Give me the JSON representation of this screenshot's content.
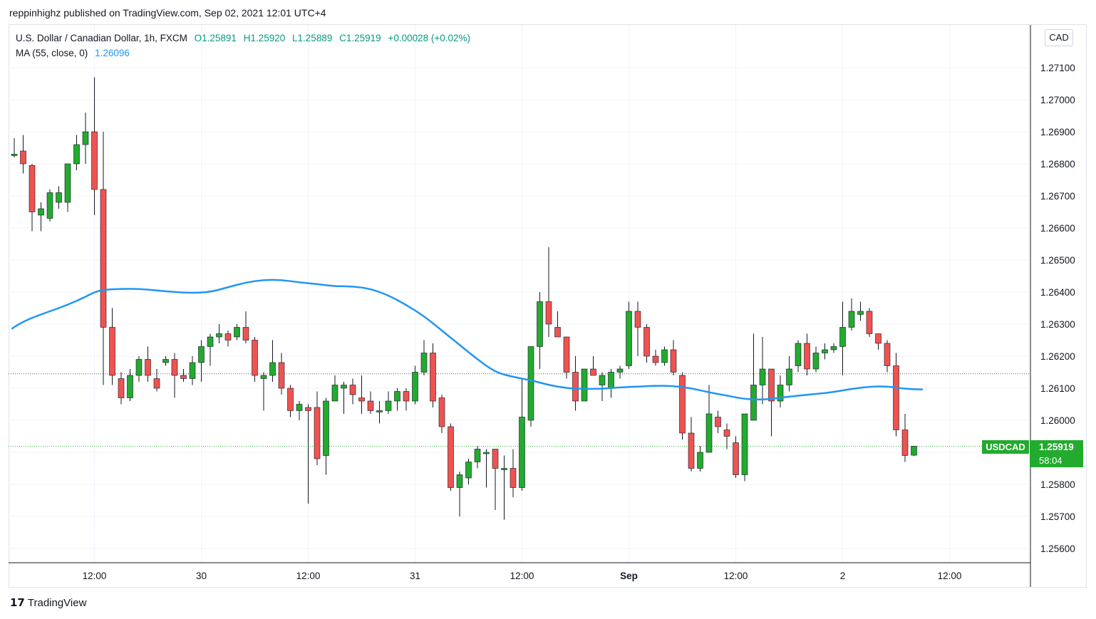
{
  "header": {
    "published": "reppinhighz published on TradingView.com, Sep 02, 2021 12:01 UTC+4"
  },
  "legend": {
    "title": "U.S. Dollar / Canadian Dollar, 1h, FXCM",
    "open": "O1.25891",
    "high": "H1.25920",
    "low": "L1.25889",
    "close": "C1.25919",
    "change": "+0.00028 (+0.02%)",
    "ma_label": "MA (55, close, 0)",
    "ma_value": "1.26096"
  },
  "currency_badge": "CAD",
  "price_tag": {
    "symbol": "USDCAD",
    "price": "1.25919",
    "countdown": "58:04"
  },
  "footer": {
    "brand": "TradingView",
    "brand_mark": "17"
  },
  "colors": {
    "up": "#22ab2e",
    "down": "#ef5350",
    "ma": "#2196f3",
    "grid": "#f0f3fa",
    "text": "#131722"
  },
  "chart_data": {
    "type": "candlestick",
    "symbol": "USDCAD",
    "timeframe": "1h",
    "ylim": [
      1.2555,
      1.272
    ],
    "y_ticks": [
      "1.27100",
      "1.27000",
      "1.26900",
      "1.26800",
      "1.26700",
      "1.26600",
      "1.26500",
      "1.26400",
      "1.26300",
      "1.26200",
      "1.26100",
      "1.26000",
      "1.25900",
      "1.25800",
      "1.25700",
      "1.25600"
    ],
    "x_ticks": [
      {
        "label": "12:00",
        "index": 9
      },
      {
        "label": "30",
        "index": 21
      },
      {
        "label": "12:00",
        "index": 33
      },
      {
        "label": "31",
        "index": 45
      },
      {
        "label": "12:00",
        "index": 57
      },
      {
        "label": "Sep",
        "index": 69,
        "bold": true
      },
      {
        "label": "12:00",
        "index": 81
      },
      {
        "label": "2",
        "index": 93
      },
      {
        "label": "12:00",
        "index": 105
      }
    ],
    "reference_lines": [
      1.26145,
      1.25919
    ],
    "candles": [
      {
        "o": 1.2683,
        "h": 1.2688,
        "l": 1.2682,
        "c": 1.2683
      },
      {
        "o": 1.2684,
        "h": 1.2689,
        "l": 1.2677,
        "c": 1.268
      },
      {
        "o": 1.26795,
        "h": 1.268,
        "l": 1.2659,
        "c": 1.2665
      },
      {
        "o": 1.2664,
        "h": 1.2668,
        "l": 1.2659,
        "c": 1.2666
      },
      {
        "o": 1.2663,
        "h": 1.2672,
        "l": 1.2662,
        "c": 1.2671
      },
      {
        "o": 1.2668,
        "h": 1.2673,
        "l": 1.2666,
        "c": 1.2671
      },
      {
        "o": 1.2668,
        "h": 1.268,
        "l": 1.2665,
        "c": 1.268
      },
      {
        "o": 1.268,
        "h": 1.2689,
        "l": 1.2678,
        "c": 1.2686
      },
      {
        "o": 1.2686,
        "h": 1.2696,
        "l": 1.268,
        "c": 1.269
      },
      {
        "o": 1.269,
        "h": 1.2707,
        "l": 1.2664,
        "c": 1.2672
      },
      {
        "o": 1.2672,
        "h": 1.269,
        "l": 1.2611,
        "c": 1.2629
      },
      {
        "o": 1.2629,
        "h": 1.2635,
        "l": 1.2611,
        "c": 1.2614
      },
      {
        "o": 1.2613,
        "h": 1.2615,
        "l": 1.2605,
        "c": 1.2607
      },
      {
        "o": 1.2607,
        "h": 1.2616,
        "l": 1.2606,
        "c": 1.2614
      },
      {
        "o": 1.2614,
        "h": 1.262,
        "l": 1.2612,
        "c": 1.2619
      },
      {
        "o": 1.2619,
        "h": 1.2623,
        "l": 1.2612,
        "c": 1.2614
      },
      {
        "o": 1.2613,
        "h": 1.2616,
        "l": 1.2609,
        "c": 1.261
      },
      {
        "o": 1.2618,
        "h": 1.262,
        "l": 1.2617,
        "c": 1.2619
      },
      {
        "o": 1.2619,
        "h": 1.2621,
        "l": 1.2607,
        "c": 1.2614
      },
      {
        "o": 1.2614,
        "h": 1.2616,
        "l": 1.2612,
        "c": 1.2613
      },
      {
        "o": 1.2613,
        "h": 1.262,
        "l": 1.2611,
        "c": 1.2618
      },
      {
        "o": 1.2618,
        "h": 1.2625,
        "l": 1.2612,
        "c": 1.2623
      },
      {
        "o": 1.2623,
        "h": 1.2627,
        "l": 1.2617,
        "c": 1.2626
      },
      {
        "o": 1.2626,
        "h": 1.263,
        "l": 1.2624,
        "c": 1.2627
      },
      {
        "o": 1.2627,
        "h": 1.2628,
        "l": 1.2623,
        "c": 1.2625
      },
      {
        "o": 1.2626,
        "h": 1.263,
        "l": 1.2625,
        "c": 1.2629
      },
      {
        "o": 1.2629,
        "h": 1.2634,
        "l": 1.2624,
        "c": 1.2625
      },
      {
        "o": 1.2625,
        "h": 1.2626,
        "l": 1.2612,
        "c": 1.2614
      },
      {
        "o": 1.2613,
        "h": 1.2615,
        "l": 1.2603,
        "c": 1.2614
      },
      {
        "o": 1.2614,
        "h": 1.2625,
        "l": 1.2612,
        "c": 1.2618
      },
      {
        "o": 1.2618,
        "h": 1.2621,
        "l": 1.2608,
        "c": 1.261
      },
      {
        "o": 1.261,
        "h": 1.2611,
        "l": 1.2601,
        "c": 1.2603
      },
      {
        "o": 1.2603,
        "h": 1.2606,
        "l": 1.26,
        "c": 1.2605
      },
      {
        "o": 1.2604,
        "h": 1.2605,
        "l": 1.2574,
        "c": 1.2603
      },
      {
        "o": 1.2604,
        "h": 1.2609,
        "l": 1.2586,
        "c": 1.2588
      },
      {
        "o": 1.2589,
        "h": 1.2607,
        "l": 1.2583,
        "c": 1.2606
      },
      {
        "o": 1.2606,
        "h": 1.2614,
        "l": 1.2606,
        "c": 1.2611
      },
      {
        "o": 1.261,
        "h": 1.2612,
        "l": 1.2602,
        "c": 1.2611
      },
      {
        "o": 1.2611,
        "h": 1.2613,
        "l": 1.2605,
        "c": 1.2608
      },
      {
        "o": 1.2607,
        "h": 1.2614,
        "l": 1.2602,
        "c": 1.2606
      },
      {
        "o": 1.2606,
        "h": 1.2609,
        "l": 1.2602,
        "c": 1.2603
      },
      {
        "o": 1.2603,
        "h": 1.2606,
        "l": 1.2599,
        "c": 1.2603
      },
      {
        "o": 1.2603,
        "h": 1.2609,
        "l": 1.2602,
        "c": 1.2606
      },
      {
        "o": 1.2606,
        "h": 1.261,
        "l": 1.2603,
        "c": 1.2609
      },
      {
        "o": 1.2609,
        "h": 1.261,
        "l": 1.2603,
        "c": 1.2606
      },
      {
        "o": 1.2606,
        "h": 1.2617,
        "l": 1.2605,
        "c": 1.2615
      },
      {
        "o": 1.2615,
        "h": 1.2625,
        "l": 1.2614,
        "c": 1.2621
      },
      {
        "o": 1.2621,
        "h": 1.2624,
        "l": 1.2604,
        "c": 1.2606
      },
      {
        "o": 1.2607,
        "h": 1.2608,
        "l": 1.2596,
        "c": 1.2598
      },
      {
        "o": 1.2598,
        "h": 1.2599,
        "l": 1.2578,
        "c": 1.2579
      },
      {
        "o": 1.2579,
        "h": 1.2584,
        "l": 1.257,
        "c": 1.2583
      },
      {
        "o": 1.2582,
        "h": 1.2588,
        "l": 1.258,
        "c": 1.2587
      },
      {
        "o": 1.2587,
        "h": 1.2592,
        "l": 1.2585,
        "c": 1.2591
      },
      {
        "o": 1.259,
        "h": 1.2591,
        "l": 1.2579,
        "c": 1.259
      },
      {
        "o": 1.2591,
        "h": 1.2591,
        "l": 1.2572,
        "c": 1.2585
      },
      {
        "o": 1.2585,
        "h": 1.2589,
        "l": 1.2569,
        "c": 1.2585
      },
      {
        "o": 1.2585,
        "h": 1.2591,
        "l": 1.2576,
        "c": 1.2579
      },
      {
        "o": 1.2579,
        "h": 1.2613,
        "l": 1.2578,
        "c": 1.2601
      },
      {
        "o": 1.26,
        "h": 1.2623,
        "l": 1.2598,
        "c": 1.2623
      },
      {
        "o": 1.2623,
        "h": 1.264,
        "l": 1.2616,
        "c": 1.2637
      },
      {
        "o": 1.2637,
        "h": 1.2654,
        "l": 1.2626,
        "c": 1.263
      },
      {
        "o": 1.2629,
        "h": 1.2634,
        "l": 1.2626,
        "c": 1.2626
      },
      {
        "o": 1.2626,
        "h": 1.2626,
        "l": 1.2613,
        "c": 1.2615
      },
      {
        "o": 1.2615,
        "h": 1.262,
        "l": 1.2603,
        "c": 1.2606
      },
      {
        "o": 1.2606,
        "h": 1.2616,
        "l": 1.2606,
        "c": 1.2616
      },
      {
        "o": 1.2616,
        "h": 1.262,
        "l": 1.2615,
        "c": 1.2614
      },
      {
        "o": 1.2611,
        "h": 1.2615,
        "l": 1.2606,
        "c": 1.2614
      },
      {
        "o": 1.261,
        "h": 1.2616,
        "l": 1.2607,
        "c": 1.2615
      },
      {
        "o": 1.2615,
        "h": 1.2617,
        "l": 1.2613,
        "c": 1.2616
      },
      {
        "o": 1.2617,
        "h": 1.2637,
        "l": 1.2616,
        "c": 1.2634
      },
      {
        "o": 1.2634,
        "h": 1.2637,
        "l": 1.262,
        "c": 1.2629
      },
      {
        "o": 1.2629,
        "h": 1.263,
        "l": 1.2618,
        "c": 1.262
      },
      {
        "o": 1.262,
        "h": 1.2622,
        "l": 1.2617,
        "c": 1.2618
      },
      {
        "o": 1.2618,
        "h": 1.2623,
        "l": 1.2617,
        "c": 1.2622
      },
      {
        "o": 1.2622,
        "h": 1.2625,
        "l": 1.2614,
        "c": 1.2615
      },
      {
        "o": 1.2614,
        "h": 1.2615,
        "l": 1.2594,
        "c": 1.2596
      },
      {
        "o": 1.2596,
        "h": 1.2601,
        "l": 1.2584,
        "c": 1.2585
      },
      {
        "o": 1.2585,
        "h": 1.2592,
        "l": 1.2584,
        "c": 1.259
      },
      {
        "o": 1.259,
        "h": 1.2611,
        "l": 1.259,
        "c": 1.2602
      },
      {
        "o": 1.2601,
        "h": 1.2603,
        "l": 1.2596,
        "c": 1.2598
      },
      {
        "o": 1.2597,
        "h": 1.2599,
        "l": 1.2591,
        "c": 1.2595
      },
      {
        "o": 1.2593,
        "h": 1.2595,
        "l": 1.2582,
        "c": 1.2583
      },
      {
        "o": 1.2583,
        "h": 1.2601,
        "l": 1.2581,
        "c": 1.2602
      },
      {
        "o": 1.26,
        "h": 1.2627,
        "l": 1.26,
        "c": 1.2611
      },
      {
        "o": 1.2611,
        "h": 1.2626,
        "l": 1.2605,
        "c": 1.2616
      },
      {
        "o": 1.2616,
        "h": 1.2616,
        "l": 1.2595,
        "c": 1.2606
      },
      {
        "o": 1.2606,
        "h": 1.2614,
        "l": 1.2604,
        "c": 1.2611
      },
      {
        "o": 1.2611,
        "h": 1.262,
        "l": 1.2609,
        "c": 1.2616
      },
      {
        "o": 1.2617,
        "h": 1.2625,
        "l": 1.2615,
        "c": 1.2624
      },
      {
        "o": 1.2624,
        "h": 1.2627,
        "l": 1.2614,
        "c": 1.2616
      },
      {
        "o": 1.2616,
        "h": 1.2623,
        "l": 1.2615,
        "c": 1.2621
      },
      {
        "o": 1.2621,
        "h": 1.2624,
        "l": 1.2619,
        "c": 1.2622
      },
      {
        "o": 1.2622,
        "h": 1.2624,
        "l": 1.2621,
        "c": 1.2623
      },
      {
        "o": 1.2623,
        "h": 1.2637,
        "l": 1.2614,
        "c": 1.2629
      },
      {
        "o": 1.2629,
        "h": 1.2638,
        "l": 1.2628,
        "c": 1.2634
      },
      {
        "o": 1.2633,
        "h": 1.2637,
        "l": 1.2631,
        "c": 1.2634
      },
      {
        "o": 1.2634,
        "h": 1.2635,
        "l": 1.2626,
        "c": 1.2627
      },
      {
        "o": 1.2627,
        "h": 1.2627,
        "l": 1.2622,
        "c": 1.2624
      },
      {
        "o": 1.2624,
        "h": 1.2625,
        "l": 1.2615,
        "c": 1.2617
      },
      {
        "o": 1.2617,
        "h": 1.2621,
        "l": 1.2595,
        "c": 1.2597
      },
      {
        "o": 1.2597,
        "h": 1.2602,
        "l": 1.2587,
        "c": 1.2589
      },
      {
        "o": 1.25891,
        "h": 1.2592,
        "l": 1.25889,
        "c": 1.25919
      }
    ],
    "ma": {
      "name": "MA (55, close, 0)",
      "start_index": 0,
      "points": [
        [
          -0.3,
          1.26285
        ],
        [
          0.5,
          1.263
        ],
        [
          2,
          1.2632
        ],
        [
          4,
          1.2634
        ],
        [
          6,
          1.2636
        ],
        [
          8,
          1.26385
        ],
        [
          9,
          1.264
        ],
        [
          10,
          1.26407
        ],
        [
          12,
          1.2641
        ],
        [
          14,
          1.2641
        ],
        [
          16,
          1.26405
        ],
        [
          18,
          1.264
        ],
        [
          20,
          1.26397
        ],
        [
          22,
          1.264
        ],
        [
          24,
          1.26415
        ],
        [
          26,
          1.2643
        ],
        [
          28,
          1.26438
        ],
        [
          30,
          1.26438
        ],
        [
          32,
          1.2643
        ],
        [
          34,
          1.26425
        ],
        [
          36,
          1.26418
        ],
        [
          38,
          1.26418
        ],
        [
          40,
          1.2641
        ],
        [
          42,
          1.2639
        ],
        [
          44,
          1.2636
        ],
        [
          46,
          1.26325
        ],
        [
          48,
          1.2628
        ],
        [
          50,
          1.26235
        ],
        [
          52,
          1.2619
        ],
        [
          54,
          1.2615
        ],
        [
          56,
          1.26135
        ],
        [
          58,
          1.26125
        ],
        [
          60,
          1.2611
        ],
        [
          62,
          1.261
        ],
        [
          64,
          1.26098
        ],
        [
          66,
          1.26098
        ],
        [
          68,
          1.26103
        ],
        [
          70,
          1.26105
        ],
        [
          72,
          1.26108
        ],
        [
          74,
          1.26107
        ],
        [
          76,
          1.261
        ],
        [
          78,
          1.26087
        ],
        [
          80,
          1.26077
        ],
        [
          82,
          1.26066
        ],
        [
          84,
          1.26064
        ],
        [
          86,
          1.2607
        ],
        [
          88,
          1.26077
        ],
        [
          90,
          1.26082
        ],
        [
          92,
          1.26088
        ],
        [
          94,
          1.26098
        ],
        [
          96,
          1.26105
        ],
        [
          98,
          1.26106
        ],
        [
          100,
          1.26098
        ],
        [
          102,
          1.26096
        ]
      ]
    }
  }
}
